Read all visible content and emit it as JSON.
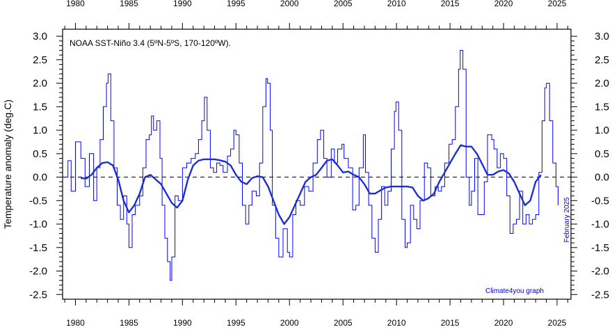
{
  "chart_data": {
    "type": "line",
    "title": "NOAA SST-Niño 3.4 (5ºN-5ºS, 170-120ºW).",
    "ylabel": "Temperature anomaly (deg.C)",
    "xlabel": "",
    "xlim": [
      1978.8,
      2026.3
    ],
    "ylim": [
      -2.6,
      3.15
    ],
    "x_ticks": [
      1980,
      1985,
      1990,
      1995,
      2000,
      2005,
      2010,
      2015,
      2020,
      2025
    ],
    "x_tick_labels": [
      "1980",
      "1985",
      "1990",
      "1995",
      "2000",
      "2005",
      "2010",
      "2015",
      "2020",
      "2025"
    ],
    "y_ticks": [
      3.0,
      2.5,
      2.0,
      1.5,
      1.0,
      0.5,
      0.0,
      -0.5,
      -1.0,
      -1.5,
      -2.0,
      -2.5
    ],
    "y_tick_labels": [
      "3.0",
      "2.5",
      "2.0",
      "1.5",
      "1.0",
      "0.5",
      "0.0",
      "-0.5",
      "-1.0",
      "-1.5",
      "-2.0",
      "-2.5"
    ],
    "reference_line": 0,
    "grid": false,
    "annotations": {
      "date_stamp": "February 2025",
      "credit": "Climate4you graph"
    },
    "colors": {
      "series": "#0000ff",
      "smooth": "#1a2fd0",
      "axes": "#000000",
      "annotation": "#0000cc"
    },
    "series": [
      {
        "style": "monthly step",
        "x": [
          1979.0,
          1979.3,
          1979.6,
          1980.0,
          1980.5,
          1980.9,
          1981.3,
          1981.7,
          1982.0,
          1982.3,
          1982.6,
          1982.9,
          1983.05,
          1983.3,
          1983.6,
          1983.9,
          1984.2,
          1984.5,
          1984.8,
          1985.0,
          1985.3,
          1985.6,
          1986.0,
          1986.3,
          1986.6,
          1986.9,
          1987.1,
          1987.3,
          1987.6,
          1987.9,
          1988.1,
          1988.35,
          1988.6,
          1988.85,
          1989.0,
          1989.3,
          1989.6,
          1990.0,
          1990.4,
          1990.8,
          1991.2,
          1991.5,
          1991.8,
          1992.05,
          1992.3,
          1992.6,
          1992.9,
          1993.2,
          1993.5,
          1993.8,
          1994.2,
          1994.5,
          1994.8,
          1995.0,
          1995.3,
          1995.6,
          1995.9,
          1996.2,
          1996.5,
          1996.9,
          1997.2,
          1997.5,
          1997.8,
          1997.95,
          1998.2,
          1998.4,
          1998.7,
          1999.0,
          1999.4,
          1999.8,
          2000.0,
          2000.3,
          2000.6,
          2001.0,
          2001.4,
          2001.8,
          2002.2,
          2002.6,
          2002.9,
          2003.2,
          2003.5,
          2003.9,
          2004.2,
          2004.5,
          2004.9,
          2005.1,
          2005.5,
          2005.9,
          2006.2,
          2006.5,
          2006.9,
          2007.1,
          2007.4,
          2007.7,
          2008.0,
          2008.3,
          2008.6,
          2008.9,
          2009.2,
          2009.5,
          2009.8,
          2009.95,
          2010.2,
          2010.5,
          2010.8,
          2011.0,
          2011.3,
          2011.6,
          2011.9,
          2012.2,
          2012.6,
          2012.9,
          2013.2,
          2013.6,
          2013.9,
          2014.2,
          2014.5,
          2014.9,
          2015.2,
          2015.5,
          2015.8,
          2015.95,
          2016.2,
          2016.5,
          2016.8,
          2017.0,
          2017.3,
          2017.6,
          2017.9,
          2018.2,
          2018.5,
          2018.9,
          2019.1,
          2019.4,
          2019.7,
          2020.0,
          2020.3,
          2020.6,
          2020.9,
          2021.2,
          2021.5,
          2021.8,
          2022.1,
          2022.4,
          2022.7,
          2023.0,
          2023.3,
          2023.6,
          2023.85,
          2024.0,
          2024.3,
          2024.6,
          2024.9,
          2025.1
        ],
        "y": [
          0.0,
          0.35,
          -0.3,
          0.75,
          0.4,
          -0.2,
          0.5,
          -0.5,
          0.2,
          0.8,
          1.5,
          2.0,
          2.2,
          1.2,
          0.2,
          -0.6,
          -0.9,
          -0.4,
          -1.0,
          -1.5,
          -0.8,
          -0.6,
          -0.4,
          0.2,
          0.8,
          0.9,
          1.3,
          1.0,
          1.2,
          0.4,
          -0.6,
          -1.3,
          -1.8,
          -2.2,
          -1.7,
          -0.4,
          -0.5,
          0.2,
          0.3,
          0.4,
          0.5,
          0.8,
          1.2,
          1.7,
          1.0,
          0.2,
          0.1,
          0.3,
          0.25,
          0.1,
          0.45,
          0.6,
          1.0,
          0.9,
          0.3,
          -0.6,
          -1.0,
          -0.6,
          -0.3,
          -0.4,
          0.3,
          1.5,
          2.1,
          2.0,
          1.0,
          -0.6,
          -1.3,
          -1.7,
          -1.1,
          -1.6,
          -1.7,
          -0.8,
          -0.5,
          -0.6,
          -0.2,
          -0.3,
          0.3,
          0.8,
          1.0,
          0.4,
          0.0,
          0.6,
          0.3,
          0.6,
          0.7,
          0.4,
          0.2,
          -0.7,
          -0.6,
          0.2,
          0.9,
          0.1,
          -0.6,
          -1.3,
          -1.6,
          -0.9,
          -0.2,
          -0.6,
          -0.3,
          0.6,
          1.4,
          1.6,
          1.0,
          -0.9,
          -1.5,
          -1.4,
          -0.6,
          -0.9,
          -1.1,
          -0.5,
          0.3,
          0.2,
          -0.4,
          -0.2,
          -0.3,
          -0.2,
          0.3,
          0.7,
          0.8,
          1.5,
          2.3,
          2.7,
          2.3,
          0.0,
          -0.6,
          -0.3,
          0.4,
          -0.8,
          -0.8,
          -0.1,
          0.9,
          0.8,
          0.6,
          0.2,
          0.5,
          0.4,
          -0.4,
          -1.2,
          -1.0,
          -0.9,
          -0.3,
          -1.0,
          -0.8,
          -1.0,
          -0.9,
          -0.8,
          0.1,
          1.2,
          1.9,
          2.0,
          1.2,
          0.3,
          -0.2,
          -0.6
        ]
      },
      {
        "style": "smoothed running mean",
        "x": [
          1980.5,
          1981.0,
          1981.5,
          1982.0,
          1982.5,
          1983.0,
          1983.5,
          1984.0,
          1984.5,
          1985.0,
          1985.5,
          1986.0,
          1986.5,
          1987.0,
          1987.5,
          1988.0,
          1988.5,
          1989.0,
          1989.5,
          1990.0,
          1990.5,
          1991.0,
          1991.5,
          1992.0,
          1992.5,
          1993.0,
          1993.5,
          1994.0,
          1994.5,
          1995.0,
          1995.5,
          1996.0,
          1996.5,
          1997.0,
          1997.5,
          1998.0,
          1998.5,
          1999.0,
          1999.5,
          2000.0,
          2000.5,
          2001.0,
          2001.5,
          2002.0,
          2002.5,
          2003.0,
          2003.5,
          2004.0,
          2004.5,
          2005.0,
          2005.5,
          2006.0,
          2006.5,
          2007.0,
          2007.5,
          2008.0,
          2008.5,
          2009.0,
          2009.5,
          2010.0,
          2010.5,
          2011.0,
          2011.5,
          2012.0,
          2012.5,
          2013.0,
          2013.5,
          2014.0,
          2014.5,
          2015.0,
          2015.5,
          2016.0,
          2016.5,
          2017.0,
          2017.5,
          2018.0,
          2018.5,
          2019.0,
          2019.5,
          2020.0,
          2020.5,
          2021.0,
          2021.5,
          2022.0,
          2022.5,
          2023.0,
          2023.5
        ],
        "y": [
          -0.02,
          -0.03,
          0.05,
          0.2,
          0.3,
          0.32,
          0.25,
          -0.05,
          -0.5,
          -0.75,
          -0.6,
          -0.35,
          0.0,
          0.05,
          -0.05,
          -0.15,
          -0.35,
          -0.55,
          -0.65,
          -0.5,
          -0.05,
          0.25,
          0.35,
          0.38,
          0.38,
          0.38,
          0.36,
          0.33,
          0.25,
          0.05,
          -0.1,
          -0.15,
          -0.02,
          0.02,
          0.0,
          -0.2,
          -0.5,
          -0.8,
          -1.0,
          -0.85,
          -0.6,
          -0.35,
          -0.1,
          0.0,
          0.05,
          0.2,
          0.35,
          0.38,
          0.25,
          0.1,
          0.12,
          0.05,
          0.0,
          -0.15,
          -0.35,
          -0.35,
          -0.28,
          -0.22,
          -0.2,
          -0.2,
          -0.2,
          -0.2,
          -0.22,
          -0.4,
          -0.5,
          -0.45,
          -0.35,
          -0.1,
          0.1,
          0.3,
          0.5,
          0.68,
          0.65,
          0.65,
          0.5,
          0.28,
          0.05,
          0.05,
          0.12,
          0.15,
          0.08,
          -0.1,
          -0.35,
          -0.6,
          -0.5,
          -0.1,
          0.05
        ]
      }
    ]
  }
}
